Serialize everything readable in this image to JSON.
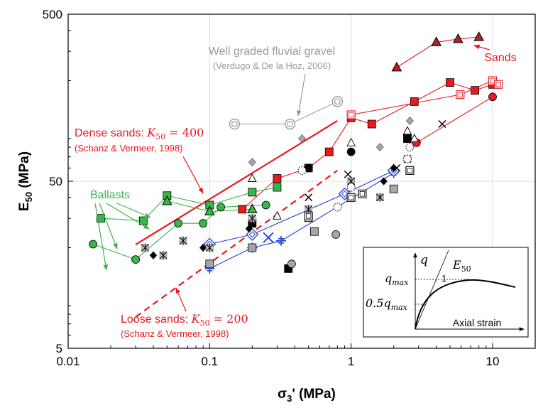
{
  "chart_data": {
    "type": "scatter",
    "x_scale": "log",
    "y_scale": "log",
    "xlim": [
      0.01,
      20
    ],
    "ylim": [
      5,
      500
    ],
    "x_ticks": [
      "0.01",
      "0.1",
      "1",
      "10"
    ],
    "y_ticks": [
      "5",
      "50",
      "500"
    ],
    "x_tick_values": [
      0.01,
      0.1,
      1,
      10
    ],
    "y_tick_values": [
      5,
      50,
      500
    ],
    "xlabel": {
      "main": "σ",
      "sub": "3",
      "rest": "' (MPa)"
    },
    "ylabel": {
      "main": "E",
      "sub": "50",
      "rest": " (MPa)"
    },
    "grid": true,
    "colors": {
      "sands": "#e8191f",
      "ballasts": "#3ab54a",
      "gravel": "#9a9a9a",
      "blue": "#1f3fd6",
      "black": "#000000",
      "grey": "#a6a6a6"
    },
    "trend_lines": [
      {
        "label_main": "Dense sands: ",
        "label_math": "K",
        "label_sub": "50",
        "label_eq": " = 400",
        "reference": "(Schanz & Vermeer, 1998)",
        "style": "solid",
        "color": "#e8191f",
        "x": [
          0.03,
          0.8
        ],
        "y": [
          20.9,
          115
        ]
      },
      {
        "label_main": "Loose sands: ",
        "label_math": "K",
        "label_sub": "50",
        "label_eq": " = 200",
        "reference": "(Schanz & Vermeer, 1998)",
        "style": "dashed",
        "color": "#e8191f",
        "x": [
          0.03,
          0.8
        ],
        "y": [
          7.7,
          58
        ]
      }
    ],
    "series": [
      {
        "name": "Sands",
        "group": "sands",
        "marker": "triangle",
        "color": "#b22222",
        "x": [
          2.1,
          4.0,
          5.7,
          8.0
        ],
        "y": [
          240,
          340,
          355,
          365
        ]
      },
      {
        "group": "sands",
        "marker": "square",
        "color": "#e8191f",
        "x": [
          0.17,
          0.3,
          0.5,
          0.7,
          1.0,
          1.4,
          2.8,
          5.0,
          7.5,
          10.0
        ],
        "y": [
          34,
          52,
          60,
          75,
          120,
          110,
          150,
          195,
          175,
          190
        ]
      },
      {
        "group": "sands",
        "marker": "square-open",
        "color": "#e8191f",
        "x": [
          1.0,
          5.9,
          10.0,
          11.0
        ],
        "y": [
          125,
          165,
          200,
          190
        ]
      },
      {
        "group": "sands",
        "marker": "circle",
        "color": "#e8191f",
        "x": [
          2.9,
          10.0
        ],
        "y": [
          85,
          160
        ]
      },
      {
        "name": "Well graded fluvial gravel",
        "reference": "(Verdugo & De la Hoz, 2006)",
        "group": "gravel",
        "marker": "double-circle",
        "color": "#9a9a9a",
        "x": [
          0.15,
          0.37,
          0.8
        ],
        "y": [
          110,
          110,
          150
        ]
      },
      {
        "name": "Ballasts",
        "group": "ballasts",
        "marker": "circle",
        "color": "#3ab54a",
        "x": [
          0.015,
          0.03,
          0.06,
          0.09,
          0.12,
          0.25
        ],
        "y": [
          21,
          17,
          28,
          28,
          35,
          36
        ]
      },
      {
        "group": "ballasts",
        "marker": "square",
        "color": "#3ab54a",
        "x": [
          0.017,
          0.034,
          0.05,
          0.1,
          0.2,
          0.3
        ],
        "y": [
          30,
          29,
          41,
          36,
          43,
          46
        ]
      },
      {
        "group": "ballasts",
        "marker": "triangle",
        "color": "#3ab54a",
        "x": [
          0.05,
          0.1,
          0.2
        ],
        "y": [
          38,
          33,
          34
        ]
      },
      {
        "group": "blue",
        "marker": "plus",
        "color": "#1f3fd6",
        "x": [
          0.1,
          0.2,
          0.32,
          2.0
        ],
        "y": [
          15,
          20,
          22,
          56
        ]
      },
      {
        "group": "blue",
        "marker": "diamond-open",
        "color": "#1f3fd6",
        "x": [
          0.1,
          0.2,
          0.9,
          2.0
        ],
        "y": [
          21,
          24,
          42,
          58
        ]
      },
      {
        "group": "blue",
        "marker": "cross",
        "color": "#1f3fd6",
        "x": [
          0.26
        ],
        "y": [
          23
        ]
      },
      {
        "group": "black",
        "marker": "circle",
        "color": "#000000",
        "x": [
          0.5,
          1.0
        ],
        "y": [
          60,
          75
        ]
      },
      {
        "group": "black",
        "marker": "diamond",
        "color": "#000000",
        "x": [
          0.04,
          0.09,
          0.19,
          1.7,
          2.0
        ],
        "y": [
          18,
          20,
          26,
          50,
          60
        ]
      },
      {
        "group": "black",
        "marker": "square",
        "color": "#000000",
        "x": [
          0.2,
          0.36,
          2.5
        ],
        "y": [
          28,
          15,
          90
        ]
      },
      {
        "group": "black",
        "marker": "x",
        "color": "#000000",
        "x": [
          0.5,
          0.95,
          2.1,
          4.4
        ],
        "y": [
          40,
          55,
          60,
          110
        ]
      },
      {
        "group": "grey",
        "marker": "circle",
        "color": "#a6a6a6",
        "x": [
          0.38,
          0.78,
          1.0
        ],
        "y": [
          16,
          24,
          40
        ]
      },
      {
        "group": "grey",
        "marker": "square",
        "color": "#a6a6a6",
        "x": [
          0.1,
          0.2,
          0.55,
          2.0
        ],
        "y": [
          16,
          20,
          25,
          45
        ]
      },
      {
        "group": "grey",
        "marker": "diamond",
        "color": "#a6a6a6",
        "x": [
          0.2,
          0.45,
          1.6,
          2.6
        ],
        "y": [
          65,
          90,
          80,
          115
        ]
      },
      {
        "group": "grey",
        "marker": "asterisk",
        "color": "#7f7f7f",
        "x": [
          0.035,
          0.047,
          0.065,
          0.1,
          0.2,
          0.5,
          1.0,
          1.6,
          2.5
        ],
        "y": [
          20,
          18,
          22,
          20,
          30,
          34,
          50,
          40,
          68
        ]
      },
      {
        "group": "grey",
        "marker": "triangle-open",
        "color": "#000000",
        "x": [
          0.2,
          0.3,
          0.5,
          1.0,
          2.5,
          2.8
        ],
        "y": [
          52,
          31,
          30,
          85,
          100,
          90
        ]
      },
      {
        "group": "grey",
        "marker": "circle-open",
        "color": "#000000",
        "x": [
          0.45,
          0.8,
          1.0,
          2.6,
          2.5
        ],
        "y": [
          58,
          35,
          46,
          80,
          68
        ]
      },
      {
        "group": "grey",
        "marker": "square-open",
        "color": "#000000",
        "x": [
          0.5,
          1.0,
          1.2,
          2.6
        ],
        "y": [
          31,
          40,
          42,
          58
        ]
      }
    ],
    "annotations": {
      "sands_label": "Sands",
      "ballasts_label": "Ballasts",
      "gravel_label": "Well graded fluvial gravel",
      "gravel_ref": "(Verdugo & De la Hoz, 2006)"
    },
    "inset": {
      "y_label": "q",
      "slope_label_main": "E",
      "slope_label_sub": "50",
      "slope_value": "1",
      "q_max_label_main": "q",
      "q_max_label_sub": "max",
      "half_q_max_label_main": "0.5q",
      "half_q_max_label_sub": "max",
      "x_label": "Axial strain"
    }
  }
}
